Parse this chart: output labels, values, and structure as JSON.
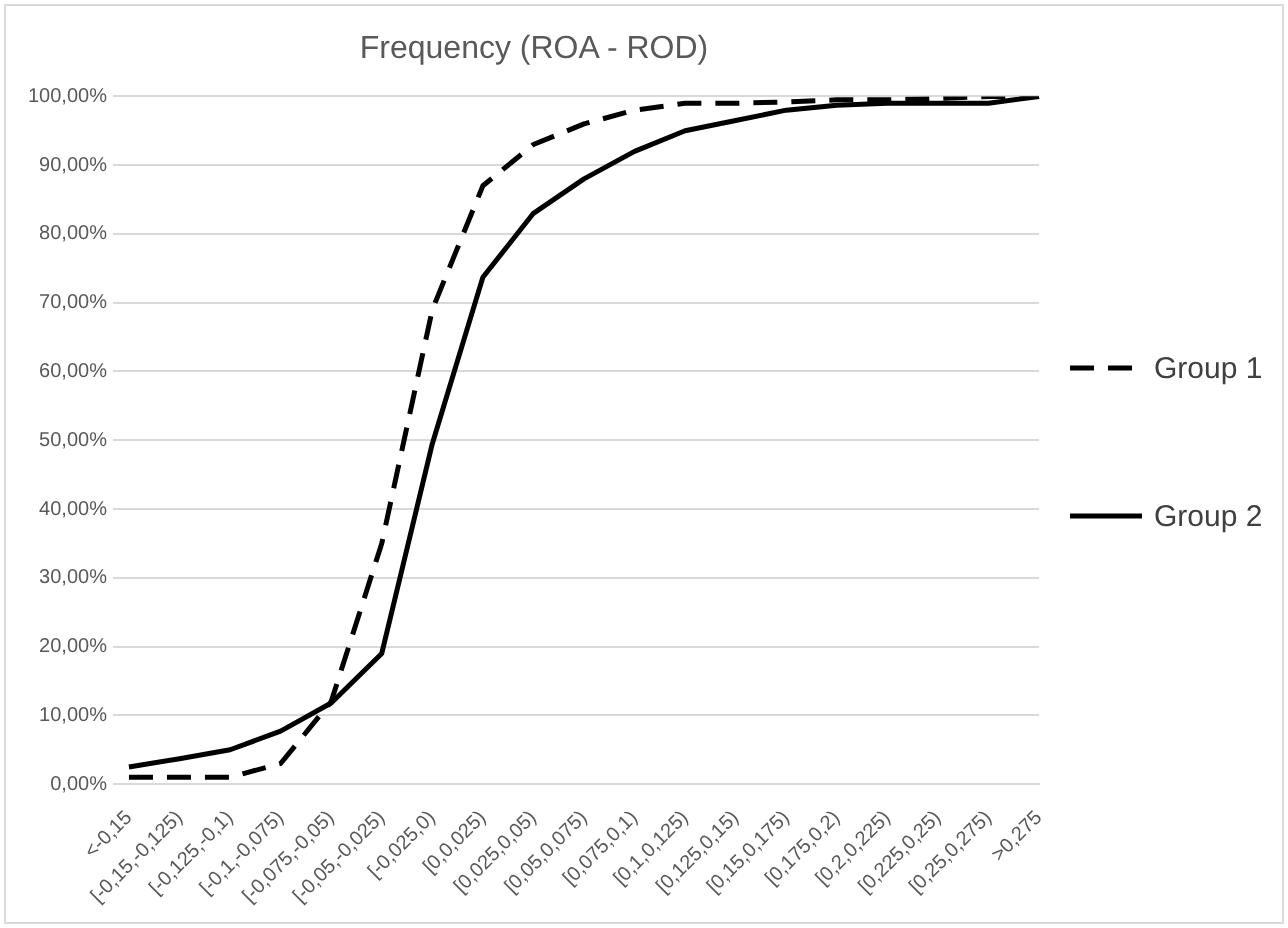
{
  "chart_data": {
    "type": "line",
    "title": "Frequency (ROA - ROD)",
    "categories": [
      "<-0,15",
      "[-0,15,-0,125)",
      "[-0,125,-0,1)",
      "[-0,1,-0,075)",
      "[-0,075,-0,05)",
      "[-0,05,-0,025)",
      "[-0,025,0)",
      "[0,0,025)",
      "[0,025,0,05)",
      "[0,05,0,075)",
      "[0,075,0,1)",
      "[0,1,0,125)",
      "[0,125,0,15)",
      "[0,15,0,175)",
      "[0,175,0,2)",
      "[0,2,0,225)",
      "[0,225,0,25)",
      "[0,25,0,275)",
      ">0,275"
    ],
    "series": [
      {
        "name": "Group 1",
        "color": "#000000",
        "line_style": "dashed",
        "values": [
          1,
          1,
          1,
          3,
          12,
          35,
          69,
          87,
          93,
          96,
          98,
          99,
          99,
          99.2,
          99.5,
          99.5,
          99.7,
          100,
          100
        ]
      },
      {
        "name": "Group 2",
        "color": "#000000",
        "line_style": "solid",
        "values": [
          2.5,
          3.7,
          5,
          7.7,
          11.8,
          19,
          49.5,
          73.7,
          83,
          88,
          92,
          95,
          96.5,
          98,
          98.7,
          99,
          99,
          99,
          100
        ]
      }
    ],
    "ylim": [
      0,
      100
    ],
    "yticks": [
      {
        "value": 0,
        "label": "0,00%"
      },
      {
        "value": 10,
        "label": "10,00%"
      },
      {
        "value": 20,
        "label": "20,00%"
      },
      {
        "value": 30,
        "label": "30,00%"
      },
      {
        "value": 40,
        "label": "40,00%"
      },
      {
        "value": 50,
        "label": "50,00%"
      },
      {
        "value": 60,
        "label": "60,00%"
      },
      {
        "value": 70,
        "label": "70,00%"
      },
      {
        "value": 80,
        "label": "80,00%"
      },
      {
        "value": 90,
        "label": "90,00%"
      },
      {
        "value": 100,
        "label": "100,00%"
      }
    ],
    "grid": "y",
    "legend": "right",
    "marker": "none"
  }
}
